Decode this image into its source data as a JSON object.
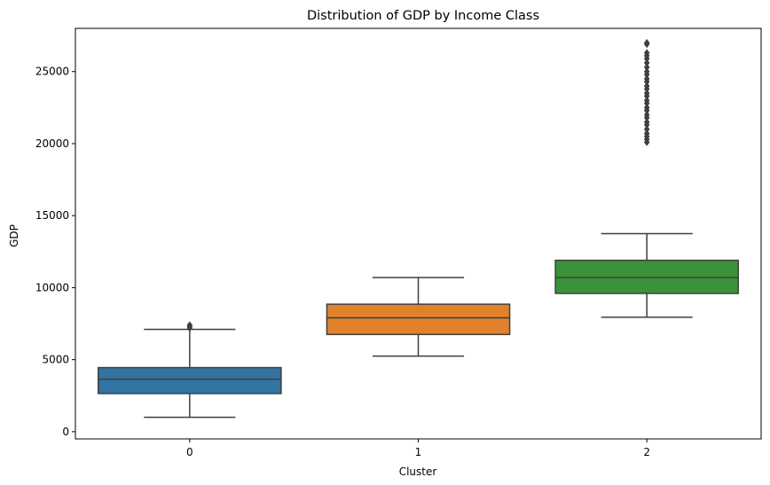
{
  "chart_data": {
    "type": "boxplot",
    "title": "Distribution of GDP by Income Class",
    "xlabel": "Cluster",
    "ylabel": "GDP",
    "categories": [
      "0",
      "1",
      "2"
    ],
    "ylim": [
      -500,
      28000
    ],
    "yticks": [
      0,
      5000,
      10000,
      15000,
      20000,
      25000
    ],
    "ytick_labels": [
      "0",
      "5000",
      "10000",
      "15000",
      "20000",
      "25000"
    ],
    "grid": false,
    "legend": "none",
    "boxes": [
      {
        "category": "0",
        "color": "#3274a1",
        "whisker_low": 1000,
        "q1": 2650,
        "median": 3650,
        "q3": 4450,
        "whisker_high": 7100,
        "outliers": [
          7200,
          7300,
          7400
        ]
      },
      {
        "category": "1",
        "color": "#e1812c",
        "whisker_low": 5250,
        "q1": 6750,
        "median": 7900,
        "q3": 8850,
        "whisker_high": 10700,
        "outliers": []
      },
      {
        "category": "2",
        "color": "#3a923a",
        "whisker_low": 7950,
        "q1": 9600,
        "median": 10700,
        "q3": 11900,
        "whisker_high": 13750,
        "outliers": [
          20100,
          20300,
          20500,
          20700,
          21000,
          21300,
          21500,
          21800,
          22000,
          22300,
          22500,
          22800,
          23000,
          23300,
          23500,
          23800,
          24000,
          24300,
          24500,
          24800,
          25000,
          25300,
          25600,
          25900,
          26100,
          26300,
          26900,
          27000
        ]
      }
    ]
  }
}
